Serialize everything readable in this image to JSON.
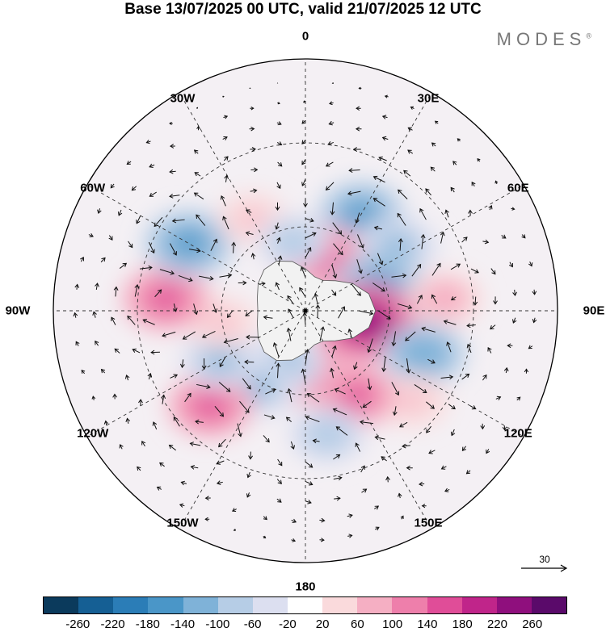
{
  "title": "Base 13/07/2025 00 UTC, valid 21/07/2025 12 UTC",
  "brand": "MODES",
  "brand_mark": "®",
  "longitude_labels": [
    "0",
    "30E",
    "60E",
    "90E",
    "120E",
    "150E",
    "180",
    "150W",
    "120W",
    "90W",
    "60W",
    "30W"
  ],
  "reference_vector": "30",
  "colorbar": {
    "ticks": [
      "-260",
      "-220",
      "-180",
      "-140",
      "-100",
      "-60",
      "-20",
      "20",
      "60",
      "100",
      "140",
      "180",
      "220",
      "260"
    ],
    "colors": [
      "#0b3a5c",
      "#155f94",
      "#2b7db7",
      "#4a96c8",
      "#7fb2d8",
      "#b6cde6",
      "#dcdff0",
      "#ffffff",
      "#fadadc",
      "#f5afc3",
      "#ee7fab",
      "#e04d98",
      "#c0258a",
      "#8f0f7d",
      "#5a0a6a"
    ]
  },
  "colors": {
    "ocean_neutral": "#f2f2f2",
    "grid": "#333333",
    "coast": "#555555"
  },
  "anomaly_centers": [
    {
      "lon": 30,
      "lat": 50,
      "value": -150
    },
    {
      "lon": 55,
      "lat": 50,
      "value": -120
    },
    {
      "lon": 15,
      "lat": 70,
      "value": 170
    },
    {
      "lon": 70,
      "lat": 62,
      "value": -160
    },
    {
      "lon": 85,
      "lat": 40,
      "value": 90
    },
    {
      "lon": 100,
      "lat": 68,
      "value": 240
    },
    {
      "lon": 110,
      "lat": 45,
      "value": -140
    },
    {
      "lon": 130,
      "lat": 40,
      "value": 70
    },
    {
      "lon": 150,
      "lat": 55,
      "value": 150
    },
    {
      "lon": 170,
      "lat": 45,
      "value": -100
    },
    {
      "lon": 180,
      "lat": 68,
      "value": 150
    },
    {
      "lon": 200,
      "lat": 70,
      "value": -110
    },
    {
      "lon": 212,
      "lat": 58,
      "value": -120
    },
    {
      "lon": 225,
      "lat": 42,
      "value": 150
    },
    {
      "lon": 240,
      "lat": 55,
      "value": -110
    },
    {
      "lon": 262,
      "lat": 60,
      "value": 60
    },
    {
      "lon": 275,
      "lat": 40,
      "value": 160
    },
    {
      "lon": 300,
      "lat": 42,
      "value": -170
    },
    {
      "lon": 330,
      "lat": 52,
      "value": 60
    },
    {
      "lon": 350,
      "lat": 65,
      "value": -80
    }
  ]
}
